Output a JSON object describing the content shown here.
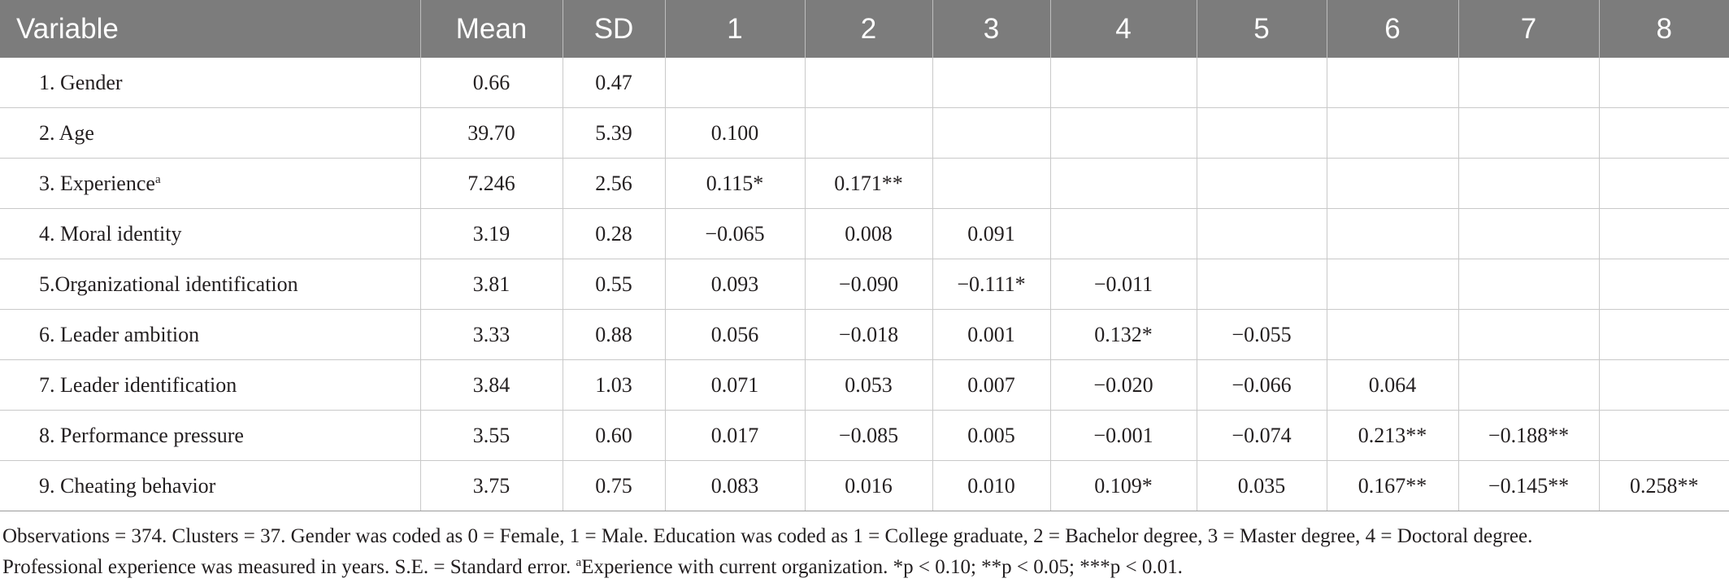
{
  "table": {
    "headers": [
      "Variable",
      "Mean",
      "SD",
      "1",
      "2",
      "3",
      "4",
      "5",
      "6",
      "7",
      "8"
    ],
    "rows": [
      {
        "variable": "1. Gender",
        "sup": "",
        "mean": "0.66",
        "sd": "0.47",
        "c": [
          "",
          "",
          "",
          "",
          "",
          "",
          "",
          ""
        ]
      },
      {
        "variable": "2. Age",
        "sup": "",
        "mean": "39.70",
        "sd": "5.39",
        "c": [
          "0.100",
          "",
          "",
          "",
          "",
          "",
          "",
          ""
        ]
      },
      {
        "variable": "3. Experience",
        "sup": "a",
        "mean": "7.246",
        "sd": "2.56",
        "c": [
          "0.115*",
          "0.171**",
          "",
          "",
          "",
          "",
          "",
          ""
        ]
      },
      {
        "variable": "4. Moral identity",
        "sup": "",
        "mean": "3.19",
        "sd": "0.28",
        "c": [
          "−0.065",
          "0.008",
          "0.091",
          "",
          "",
          "",
          "",
          ""
        ]
      },
      {
        "variable": "5.Organizational identification",
        "sup": "",
        "mean": "3.81",
        "sd": "0.55",
        "c": [
          "0.093",
          "−0.090",
          "−0.111*",
          "−0.011",
          "",
          "",
          "",
          ""
        ]
      },
      {
        "variable": "6. Leader ambition",
        "sup": "",
        "mean": "3.33",
        "sd": "0.88",
        "c": [
          "0.056",
          "−0.018",
          "0.001",
          "0.132*",
          "−0.055",
          "",
          "",
          ""
        ]
      },
      {
        "variable": "7. Leader identification",
        "sup": "",
        "mean": "3.84",
        "sd": "1.03",
        "c": [
          "0.071",
          "0.053",
          "0.007",
          "−0.020",
          "−0.066",
          "0.064",
          "",
          ""
        ]
      },
      {
        "variable": "8. Performance pressure",
        "sup": "",
        "mean": "3.55",
        "sd": "0.60",
        "c": [
          "0.017",
          "−0.085",
          "0.005",
          "−0.001",
          "−0.074",
          "0.213**",
          "−0.188**",
          ""
        ]
      },
      {
        "variable": "9. Cheating behavior",
        "sup": "",
        "mean": "3.75",
        "sd": "0.75",
        "c": [
          "0.083",
          "0.016",
          "0.010",
          "0.109*",
          "0.035",
          "0.167**",
          "−0.145**",
          "0.258**"
        ]
      }
    ]
  },
  "footnote": {
    "line1": "Observations = 374. Clusters = 37. Gender was coded as 0 = Female, 1 = Male. Education was coded as 1 = College graduate, 2 = Bachelor degree, 3 = Master degree, 4 = Doctoral degree.",
    "line2_pre": "Professional experience was measured in years. S.E. = Standard error. ",
    "line2_sup": "a",
    "line2_post": "Experience with current organization. *p < 0.10; **p < 0.05; ***p < 0.01."
  }
}
